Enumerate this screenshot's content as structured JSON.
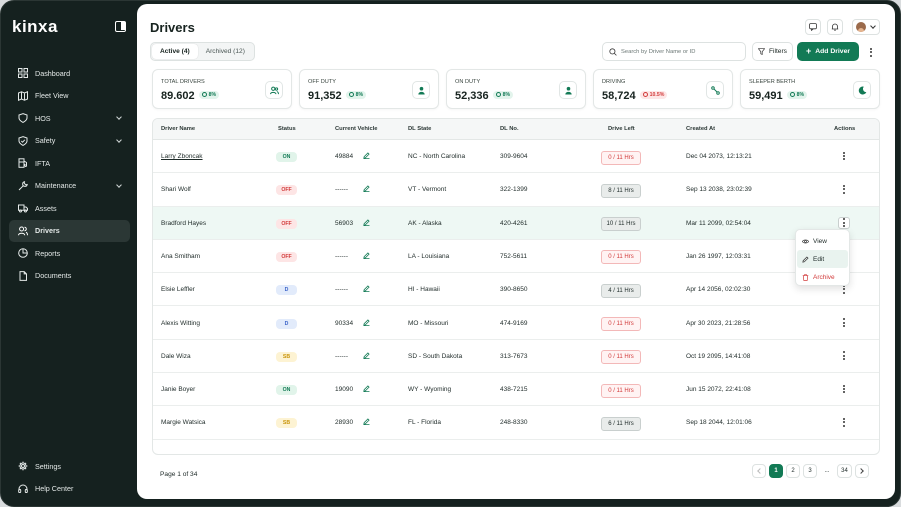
{
  "brand": {
    "logo": "kinxa"
  },
  "sidebar": {
    "items": [
      {
        "label": "Dashboard",
        "icon": "dashboard-icon",
        "chevron": false,
        "active": false
      },
      {
        "label": "Fleet View",
        "icon": "map-icon",
        "chevron": false,
        "active": false
      },
      {
        "label": "HOS",
        "icon": "shield-icon",
        "chevron": true,
        "active": false
      },
      {
        "label": "Safety",
        "icon": "safety-icon",
        "chevron": true,
        "active": false
      },
      {
        "label": "IFTA",
        "icon": "fuel-icon",
        "chevron": false,
        "active": false
      },
      {
        "label": "Maintenance",
        "icon": "wrench-icon",
        "chevron": true,
        "active": false
      },
      {
        "label": "Assets",
        "icon": "truck-icon",
        "chevron": false,
        "active": false
      },
      {
        "label": "Drivers",
        "icon": "users-icon",
        "chevron": false,
        "active": true
      },
      {
        "label": "Reports",
        "icon": "reports-icon",
        "chevron": false,
        "active": false
      },
      {
        "label": "Documents",
        "icon": "documents-icon",
        "chevron": false,
        "active": false
      }
    ],
    "bottom": [
      {
        "label": "Settings",
        "icon": "gear-icon"
      },
      {
        "label": "Help Center",
        "icon": "headset-icon"
      }
    ]
  },
  "header": {
    "title": "Drivers"
  },
  "tabs": [
    {
      "label": "Active (4)",
      "active": true
    },
    {
      "label": "Archived (12)",
      "active": false
    }
  ],
  "search": {
    "placeholder": "Search by Driver Name or ID",
    "value": ""
  },
  "toolbar": {
    "filters_label": "Filters",
    "add_label": "Add Driver"
  },
  "stats": [
    {
      "label": "TOTAL DRIVERS",
      "value": "89.602",
      "change": "8%",
      "trend": "up",
      "icon": "users-icon"
    },
    {
      "label": "OFF DUTY",
      "value": "91,352",
      "change": "8%",
      "trend": "up",
      "icon": "user-icon"
    },
    {
      "label": "ON DUTY",
      "value": "52,336",
      "change": "8%",
      "trend": "up",
      "icon": "user-icon"
    },
    {
      "label": "DRIVING",
      "value": "58,724",
      "change": "10.5%",
      "trend": "down",
      "icon": "route-icon"
    },
    {
      "label": "SLEEPER BERTH",
      "value": "59,491",
      "change": "8%",
      "trend": "up",
      "icon": "moon-icon"
    }
  ],
  "table": {
    "columns": [
      "Driver Name",
      "Status",
      "Current Vehicle",
      "DL State",
      "DL No.",
      "Drive Left",
      "Created At",
      "Actions"
    ],
    "rows": [
      {
        "name": "Larry Zboncak",
        "status": "ON",
        "vehicle": "49884",
        "state": "NC - North Carolina",
        "dl": "309-9604",
        "drive": "0 / 11 Hrs",
        "drive_kind": "red",
        "created": "Dec 04 2073, 12:13:21"
      },
      {
        "name": "Shari Wolf",
        "status": "OFF",
        "vehicle": "------",
        "state": "VT - Vermont",
        "dl": "322-1399",
        "drive": "8 / 11 Hrs",
        "drive_kind": "gray",
        "created": "Sep 13 2038, 23:02:39"
      },
      {
        "name": "Bradford Hayes",
        "status": "OFF",
        "vehicle": "56903",
        "state": "AK - Alaska",
        "dl": "420-4261",
        "drive": "10 / 11 Hrs",
        "drive_kind": "gray",
        "created": "Mar 11 2099, 02:54:04"
      },
      {
        "name": "Ana Smitham",
        "status": "OFF",
        "vehicle": "------",
        "state": "LA - Louisiana",
        "dl": "752-5611",
        "drive": "0 / 11 Hrs",
        "drive_kind": "red",
        "created": "Jan 26 1997, 12:03:31"
      },
      {
        "name": "Elsie Leffler",
        "status": "D",
        "vehicle": "------",
        "state": "HI - Hawaii",
        "dl": "390-8650",
        "drive": "4 / 11 Hrs",
        "drive_kind": "gray",
        "created": "Apr 14 2056, 02:02:30"
      },
      {
        "name": "Alexis Witting",
        "status": "D",
        "vehicle": "90334",
        "state": "MO - Missouri",
        "dl": "474-9169",
        "drive": "0 / 11 Hrs",
        "drive_kind": "red",
        "created": "Apr 30 2023, 21:28:56"
      },
      {
        "name": "Dale Wiza",
        "status": "SB",
        "vehicle": "------",
        "state": "SD - South Dakota",
        "dl": "313-7673",
        "drive": "0 / 11 Hrs",
        "drive_kind": "red",
        "created": "Oct 19 2095, 14:41:08"
      },
      {
        "name": "Janie Boyer",
        "status": "ON",
        "vehicle": "19090",
        "state": "WY - Wyoming",
        "dl": "438-7215",
        "drive": "0 / 11 Hrs",
        "drive_kind": "red",
        "created": "Jun 15 2072, 22:41:08"
      },
      {
        "name": "Margie Watsica",
        "status": "SB",
        "vehicle": "28930",
        "state": "FL - Florida",
        "dl": "248-8330",
        "drive": "6 / 11 Hrs",
        "drive_kind": "gray",
        "created": "Sep 18 2044, 12:01:06"
      }
    ]
  },
  "row_menu": {
    "items": [
      {
        "label": "View",
        "icon": "eye-icon"
      },
      {
        "label": "Edit",
        "icon": "pencil-icon"
      },
      {
        "label": "Archive",
        "icon": "trash-icon"
      }
    ]
  },
  "pagination": {
    "info": "Page 1 of 34",
    "pages": [
      "1",
      "2",
      "3",
      "...",
      "34"
    ],
    "current": "1"
  },
  "colors": {
    "primary": "#127a55",
    "sidebar_bg": "#15211f",
    "danger": "#d23b3b"
  }
}
